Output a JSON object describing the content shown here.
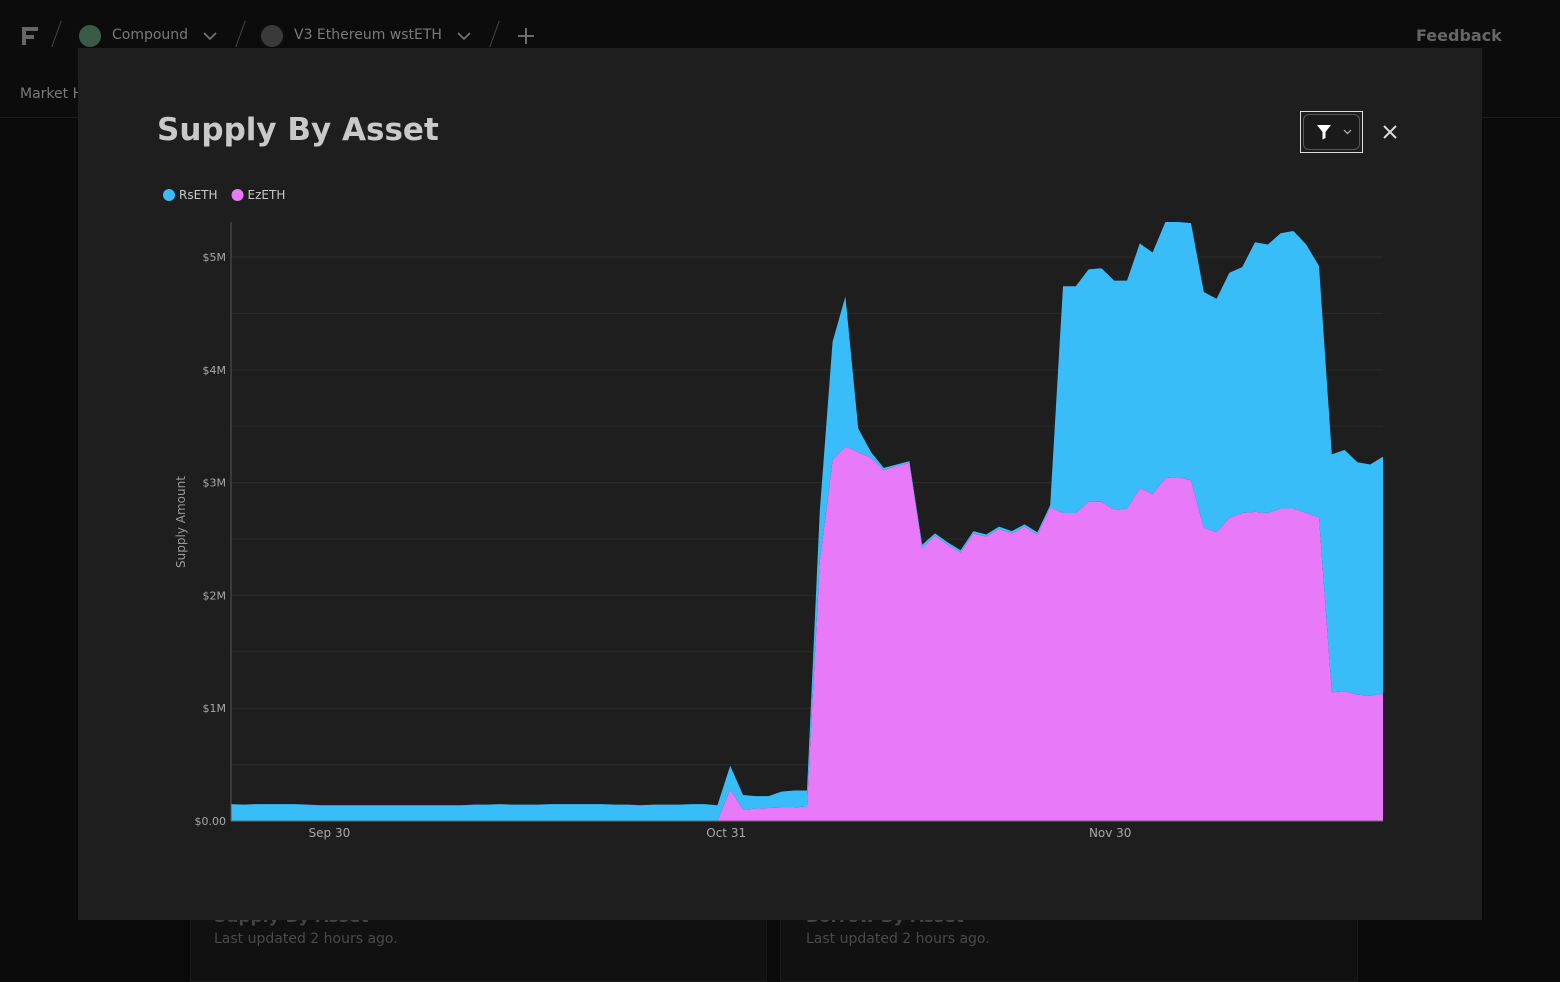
{
  "nav": {
    "protocol": "Compound",
    "market": "V3 Ethereum wstETH",
    "feedback": "Feedback",
    "tab": "Market H"
  },
  "cards": [
    {
      "title": "Supply By Asset",
      "updated": "Last updated 2 hours ago."
    },
    {
      "title": "Borrow By Asset",
      "updated": "Last updated 2 hours ago."
    }
  ],
  "chart_data": {
    "type": "area",
    "stacked": true,
    "title": "Supply By Asset",
    "ylabel": "Supply Amount",
    "legend": "top-left",
    "grid": true,
    "categories": [
      "Sep 22",
      "Sep 23",
      "Sep 24",
      "Sep 25",
      "Sep 26",
      "Sep 27",
      "Sep 28",
      "Sep 29",
      "Sep 30",
      "Oct 1",
      "Oct 2",
      "Oct 3",
      "Oct 4",
      "Oct 5",
      "Oct 6",
      "Oct 7",
      "Oct 8",
      "Oct 9",
      "Oct 10",
      "Oct 11",
      "Oct 12",
      "Oct 13",
      "Oct 14",
      "Oct 15",
      "Oct 16",
      "Oct 17",
      "Oct 18",
      "Oct 19",
      "Oct 20",
      "Oct 21",
      "Oct 22",
      "Oct 23",
      "Oct 24",
      "Oct 25",
      "Oct 26",
      "Oct 27",
      "Oct 28",
      "Oct 29",
      "Oct 30",
      "Oct 31",
      "Nov 1",
      "Nov 2",
      "Nov 3",
      "Nov 4",
      "Nov 5",
      "Nov 6",
      "Nov 7",
      "Nov 8",
      "Nov 9",
      "Nov 10",
      "Nov 11",
      "Nov 12",
      "Nov 13",
      "Nov 14",
      "Nov 15",
      "Nov 16",
      "Nov 17",
      "Nov 18",
      "Nov 19",
      "Nov 20",
      "Nov 21",
      "Nov 22",
      "Nov 23",
      "Nov 24",
      "Nov 25",
      "Nov 26",
      "Nov 27",
      "Nov 28",
      "Nov 29",
      "Nov 30",
      "Dec 1",
      "Dec 2",
      "Dec 3",
      "Dec 4",
      "Dec 5",
      "Dec 6",
      "Dec 7",
      "Dec 8",
      "Dec 9",
      "Dec 10",
      "Dec 11",
      "Dec 12",
      "Dec 13",
      "Dec 14",
      "Dec 15",
      "Dec 16",
      "Dec 17",
      "Dec 18",
      "Dec 19",
      "Dec 20",
      "Dec 21"
    ],
    "xticks": [
      "Sep 30",
      "Oct 31",
      "Nov 30"
    ],
    "ylim": [
      0,
      5310000
    ],
    "yticks": [
      {
        "value": 0,
        "label": "$0.00"
      },
      {
        "value": 1000000,
        "label": "$1M"
      },
      {
        "value": 2000000,
        "label": "$2M"
      },
      {
        "value": 3000000,
        "label": "$3M"
      },
      {
        "value": 4000000,
        "label": "$4M"
      },
      {
        "value": 5000000,
        "label": "$5M"
      }
    ],
    "yticks_minor": [
      500000,
      1500000,
      2500000,
      3500000,
      4500000
    ],
    "series": [
      {
        "name": "RsETH",
        "color": "#38bdf8",
        "values": [
          150000,
          145000,
          150000,
          150000,
          150000,
          150000,
          145000,
          140000,
          140000,
          140000,
          140000,
          140000,
          140000,
          140000,
          140000,
          140000,
          140000,
          140000,
          140000,
          145000,
          145000,
          150000,
          145000,
          145000,
          145000,
          150000,
          150000,
          150000,
          150000,
          150000,
          145000,
          145000,
          140000,
          145000,
          145000,
          145000,
          150000,
          150000,
          140000,
          210000,
          130000,
          110000,
          105000,
          140000,
          150000,
          140000,
          450000,
          1050000,
          1330000,
          210000,
          50000,
          20000,
          10000,
          20000,
          30000,
          20000,
          20000,
          20000,
          20000,
          20000,
          20000,
          20000,
          20000,
          20000,
          20000,
          2010000,
          2010000,
          2060000,
          2070000,
          2030000,
          2020000,
          2170000,
          2140000,
          2270000,
          2260000,
          2280000,
          2090000,
          2070000,
          2170000,
          2180000,
          2390000,
          2380000,
          2440000,
          2460000,
          2380000,
          2230000,
          2110000,
          2140000,
          2060000,
          2050000,
          2100000
        ]
      },
      {
        "name": "EzETH",
        "color": "#e879f9",
        "values": [
          0,
          0,
          0,
          0,
          0,
          0,
          0,
          0,
          0,
          0,
          0,
          0,
          0,
          0,
          0,
          0,
          0,
          0,
          0,
          0,
          0,
          0,
          0,
          0,
          0,
          0,
          0,
          0,
          0,
          0,
          0,
          0,
          0,
          0,
          0,
          0,
          0,
          0,
          0,
          280000,
          100000,
          110000,
          115000,
          120000,
          120000,
          130000,
          2300000,
          3200000,
          3320000,
          3270000,
          3220000,
          3110000,
          3150000,
          3170000,
          2420000,
          2530000,
          2450000,
          2380000,
          2550000,
          2520000,
          2590000,
          2550000,
          2610000,
          2540000,
          2780000,
          2730000,
          2730000,
          2830000,
          2830000,
          2760000,
          2770000,
          2950000,
          2900000,
          3040000,
          3050000,
          3020000,
          2600000,
          2560000,
          2690000,
          2730000,
          2740000,
          2730000,
          2770000,
          2770000,
          2730000,
          2690000,
          1140000,
          1150000,
          1120000,
          1110000,
          1130000
        ]
      }
    ]
  }
}
